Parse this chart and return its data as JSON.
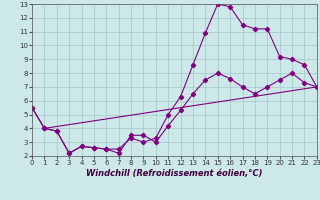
{
  "line1_x": [
    0,
    1,
    2,
    3,
    4,
    5,
    6,
    7,
    8,
    9,
    10,
    11,
    12,
    13,
    14,
    15,
    16,
    17,
    18,
    19,
    20,
    21,
    22,
    23
  ],
  "line1_y": [
    5.5,
    4.0,
    3.8,
    2.2,
    2.7,
    2.6,
    2.5,
    2.5,
    3.3,
    3.0,
    3.3,
    5.0,
    6.3,
    8.6,
    10.9,
    13.0,
    12.8,
    11.5,
    11.2,
    11.2,
    9.2,
    9.0,
    8.6,
    7.0
  ],
  "line2_x": [
    0,
    1,
    2,
    3,
    4,
    5,
    6,
    7,
    8,
    9,
    10,
    11,
    12,
    13,
    14,
    15,
    16,
    17,
    18,
    19,
    20,
    21,
    22,
    23
  ],
  "line2_y": [
    5.5,
    4.0,
    3.8,
    2.2,
    2.7,
    2.6,
    2.5,
    2.2,
    3.5,
    3.5,
    3.0,
    4.2,
    5.3,
    6.5,
    7.5,
    8.0,
    7.6,
    7.0,
    6.5,
    7.0,
    7.5,
    8.0,
    7.3,
    7.0
  ],
  "line3_x": [
    1,
    23
  ],
  "line3_y": [
    4.0,
    7.0
  ],
  "line_color": "#800080",
  "bg_color": "#cce8e8",
  "grid_color": "#aacccc",
  "xlabel": "Windchill (Refroidissement éolien,°C)",
  "xlim": [
    0,
    23
  ],
  "ylim": [
    2,
    13
  ],
  "xticks": [
    0,
    1,
    2,
    3,
    4,
    5,
    6,
    7,
    8,
    9,
    10,
    11,
    12,
    13,
    14,
    15,
    16,
    17,
    18,
    19,
    20,
    21,
    22,
    23
  ],
  "yticks": [
    2,
    3,
    4,
    5,
    6,
    7,
    8,
    9,
    10,
    11,
    12,
    13
  ],
  "axis_fontsize": 6,
  "tick_fontsize": 5
}
